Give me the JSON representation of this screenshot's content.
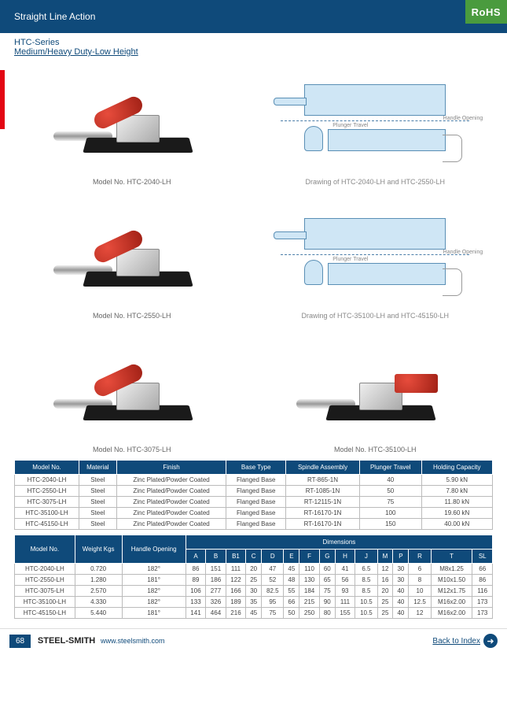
{
  "header": {
    "title": "Straight Line Action",
    "badge": "RoHS"
  },
  "subheader": {
    "series": "HTC-Series",
    "subtitle": "Medium/Heavy Duty-Low Height"
  },
  "models": {
    "m1": "Model No. HTC-2040-LH",
    "m2": "Model No. HTC-2550-LH",
    "m3": "Model No. HTC-3075-LH",
    "m4": "Model No. HTC-35100-LH"
  },
  "drawings": {
    "d1": "Drawing of HTC-2040-LH and HTC-2550-LH",
    "d2": "Drawing of HTC-35100-LH and HTC-45150-LH",
    "labels": {
      "plunger": "Plunger Travel",
      "handle": "Handle Opening"
    }
  },
  "table1": {
    "headers": [
      "Model No.",
      "Material",
      "Finish",
      "Base Type",
      "Spindle Assembly",
      "Plunger Travel",
      "Holding Capacity"
    ],
    "rows": [
      [
        "HTC-2040-LH",
        "Steel",
        "Zinc Plated/Powder Coated",
        "Flanged Base",
        "RT-865-1N",
        "40",
        "5.90 kN"
      ],
      [
        "HTC-2550-LH",
        "Steel",
        "Zinc Plated/Powder Coated",
        "Flanged Base",
        "RT-1085-1N",
        "50",
        "7.80 kN"
      ],
      [
        "HTC-3075-LH",
        "Steel",
        "Zinc Plated/Powder Coated",
        "Flanged Base",
        "RT-12115-1N",
        "75",
        "11.80 kN"
      ],
      [
        "HTC-35100-LH",
        "Steel",
        "Zinc Plated/Powder Coated",
        "Flanged Base",
        "RT-16170-1N",
        "100",
        "19.60 kN"
      ],
      [
        "HTC-45150-LH",
        "Steel",
        "Zinc Plated/Powder Coated",
        "Flanged Base",
        "RT-16170-1N",
        "150",
        "40.00 kN"
      ]
    ]
  },
  "table2": {
    "header_group": {
      "model": "Model No.",
      "weight": "Weight Kgs",
      "handle": "Handle Opening",
      "dims": "Dimensions"
    },
    "dim_headers": [
      "A",
      "B",
      "B1",
      "C",
      "D",
      "E",
      "F",
      "G",
      "H",
      "J",
      "M",
      "P",
      "R",
      "T",
      "SL"
    ],
    "rows": [
      [
        "HTC-2040-LH",
        "0.720",
        "182°",
        "86",
        "151",
        "111",
        "20",
        "47",
        "45",
        "110",
        "60",
        "41",
        "6.5",
        "12",
        "30",
        "6",
        "M8x1.25",
        "66"
      ],
      [
        "HTC-2550-LH",
        "1.280",
        "181°",
        "89",
        "186",
        "122",
        "25",
        "52",
        "48",
        "130",
        "65",
        "56",
        "8.5",
        "16",
        "30",
        "8",
        "M10x1.50",
        "86"
      ],
      [
        "HTC-3075-LH",
        "2.570",
        "182°",
        "106",
        "277",
        "166",
        "30",
        "82.5",
        "55",
        "184",
        "75",
        "93",
        "8.5",
        "20",
        "40",
        "10",
        "M12x1.75",
        "116"
      ],
      [
        "HTC-35100-LH",
        "4.330",
        "182°",
        "133",
        "326",
        "189",
        "35",
        "95",
        "66",
        "215",
        "90",
        "111",
        "10.5",
        "25",
        "40",
        "12.5",
        "M16x2.00",
        "173"
      ],
      [
        "HTC-45150-LH",
        "5.440",
        "181°",
        "141",
        "464",
        "216",
        "45",
        "75",
        "50",
        "250",
        "80",
        "155",
        "10.5",
        "25",
        "40",
        "12",
        "M16x2.00",
        "173"
      ]
    ]
  },
  "footer": {
    "page": "68",
    "brand": "STEEL-SMITH",
    "url": "www.steelsmith.com",
    "back": "Back to Index"
  }
}
